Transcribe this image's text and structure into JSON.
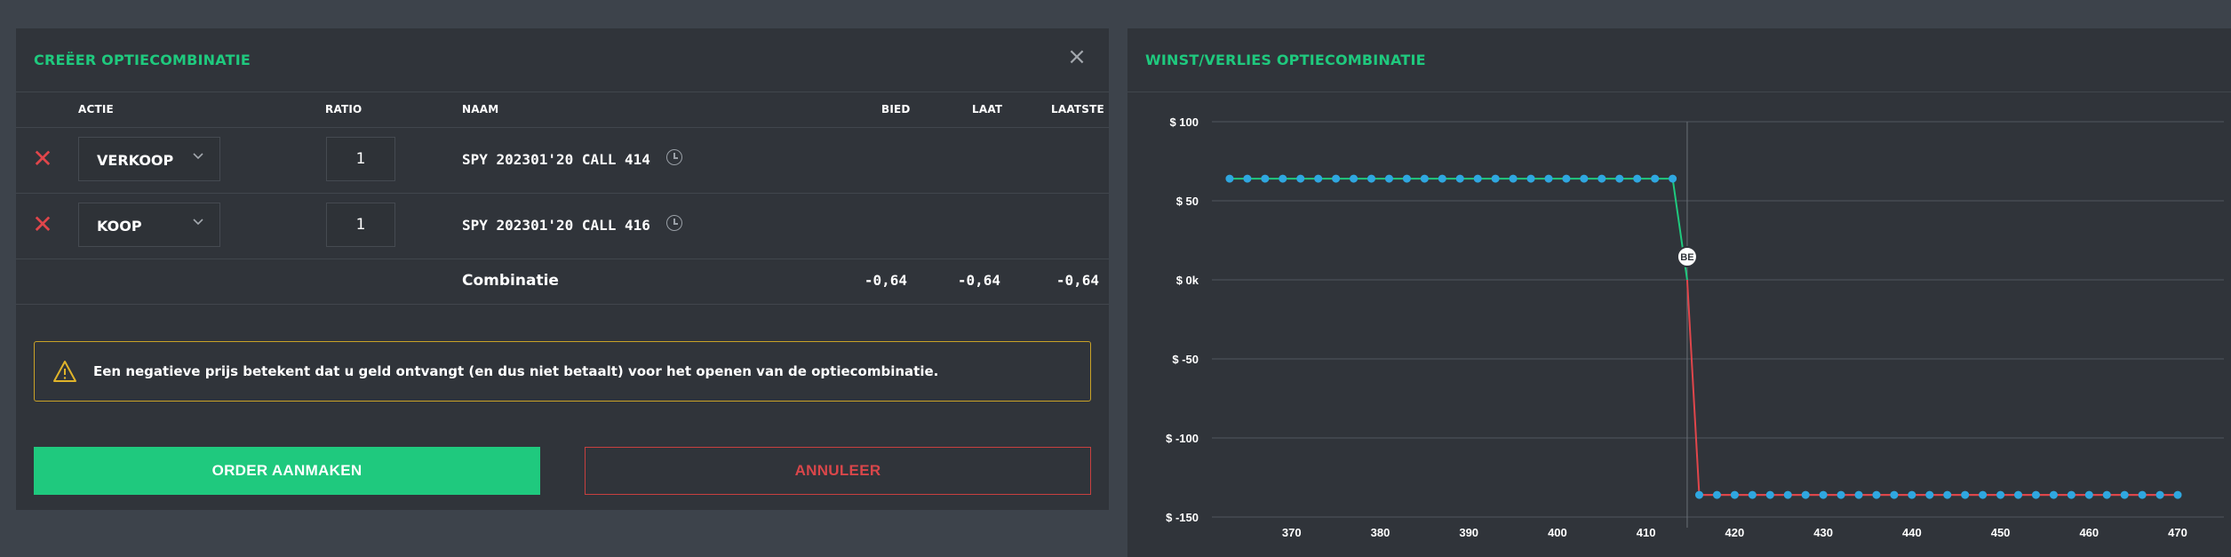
{
  "left": {
    "title": "CREËER OPTIECOMBINATIE",
    "close_icon": "×",
    "columns": {
      "actie": "ACTIE",
      "ratio": "RATIO",
      "naam": "NAAM",
      "bied": "BIED",
      "laat": "LAAT",
      "laatste": "LAATSTE"
    },
    "legs": [
      {
        "action": "VERKOOP",
        "ratio": "1",
        "name": "SPY 202301'20 CALL 414"
      },
      {
        "action": "KOOP",
        "ratio": "1",
        "name": "SPY 202301'20 CALL 416"
      }
    ],
    "combination": {
      "label": "Combinatie",
      "bid": "-0,64",
      "ask": "-0,64",
      "last": "-0,64"
    },
    "warning": "Een negatieve prijs betekent dat u geld ontvangt (en dus niet betaalt) voor het openen van de optiecombinatie.",
    "order_button": "ORDER AANMAKEN",
    "cancel_button": "ANNULEER"
  },
  "right": {
    "title": "WINST/VERLIES OPTIECOMBINATIE"
  },
  "chart_data": {
    "type": "line",
    "title": "WINST/VERLIES OPTIECOMBINATIE",
    "xlabel": "",
    "ylabel": "",
    "xlim": [
      361,
      471
    ],
    "ylim": [
      -150,
      100
    ],
    "y_ticks": [
      100,
      50,
      0,
      -50,
      -100,
      -150
    ],
    "y_tick_labels": [
      "$ 100",
      "$ 50",
      "$ 0k",
      "$ -50",
      "$ -100",
      "$ -150"
    ],
    "x_ticks": [
      370,
      380,
      390,
      400,
      410,
      420,
      430,
      440,
      450,
      460,
      470
    ],
    "x_tick_labels": [
      "370",
      "380",
      "390",
      "400",
      "410",
      "420",
      "430",
      "440",
      "450",
      "460",
      "470"
    ],
    "breakeven": {
      "x": 414.64,
      "y": 0,
      "label": "BE"
    },
    "vertical_marker_x": 414.64,
    "profit_value": 64,
    "loss_value": -136,
    "profit_points_x_range": [
      363,
      414
    ],
    "loss_points_x_range": [
      416,
      470
    ],
    "point_step": 2,
    "colors": {
      "points": "#2fa7e0",
      "profit_line": "#1fc97e",
      "loss_line": "#e0464b",
      "grid": "#50565e"
    },
    "grid": true
  }
}
